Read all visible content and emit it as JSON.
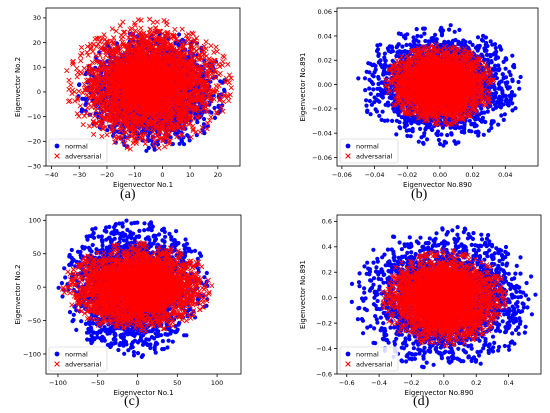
{
  "chart_data": [
    {
      "type": "scatter",
      "panel_label": "(a)",
      "xlabel": "Eigenvector No.1",
      "ylabel": "Eigenvector No.2",
      "xlim": [
        -42,
        28
      ],
      "ylim": [
        -30,
        34
      ],
      "xticks": [
        -40,
        -30,
        -20,
        -10,
        0,
        10,
        20
      ],
      "yticks": [
        -30,
        -20,
        -10,
        0,
        10,
        20,
        30
      ],
      "legend_position": "lower-left",
      "series": [
        {
          "name": "normal",
          "marker": "circle",
          "color": "#0000ff",
          "cloud": {
            "cx": -4,
            "cy": 0.5,
            "rx": 24,
            "ry": 22
          }
        },
        {
          "name": "adversarial",
          "marker": "x",
          "color": "#ff0000",
          "cloud": {
            "cx": -5,
            "cy": 3,
            "rx": 27,
            "ry": 24
          }
        }
      ]
    },
    {
      "type": "scatter",
      "panel_label": "(b)",
      "xlabel": "Eigenvector No.890",
      "ylabel": "Eigenvector No.891",
      "xlim": [
        -0.063,
        0.06
      ],
      "ylim": [
        -0.067,
        0.063
      ],
      "xticks": [
        -0.06,
        -0.04,
        -0.02,
        0.0,
        0.02,
        0.04
      ],
      "yticks": [
        -0.06,
        -0.04,
        -0.02,
        0.0,
        0.02,
        0.04,
        0.06
      ],
      "tick_decimals": 2,
      "legend_position": "lower-left",
      "series": [
        {
          "name": "normal",
          "marker": "circle",
          "color": "#0000ff",
          "cloud": {
            "cx": 0.0,
            "cy": 0.0,
            "rx": 0.045,
            "ry": 0.045
          }
        },
        {
          "name": "adversarial",
          "marker": "x",
          "color": "#ff0000",
          "cloud": {
            "cx": 0.0,
            "cy": 0.0,
            "rx": 0.03,
            "ry": 0.03
          }
        }
      ]
    },
    {
      "type": "scatter",
      "panel_label": "(c)",
      "xlabel": "Eigenvector No.1",
      "ylabel": "Eigenvector No.2",
      "xlim": [
        -115,
        130
      ],
      "ylim": [
        -130,
        108
      ],
      "xticks": [
        -100,
        -50,
        0,
        50,
        100
      ],
      "yticks": [
        -100,
        -50,
        0,
        50,
        100
      ],
      "legend_position": "lower-left",
      "series": [
        {
          "name": "normal",
          "marker": "circle",
          "color": "#0000ff",
          "cloud": {
            "cx": -5,
            "cy": 0,
            "rx": 85,
            "ry": 95
          }
        },
        {
          "name": "adversarial",
          "marker": "x",
          "color": "#ff0000",
          "cloud": {
            "cx": 0,
            "cy": 0,
            "rx": 85,
            "ry": 60
          }
        }
      ]
    },
    {
      "type": "scatter",
      "panel_label": "(d)",
      "xlabel": "Eigenvector No.890",
      "ylabel": "Eigenvector No.891",
      "xlim": [
        -0.66,
        0.6
      ],
      "ylim": [
        -0.6,
        0.65
      ],
      "xticks": [
        -0.6,
        -0.4,
        -0.2,
        0.0,
        0.2,
        0.4
      ],
      "yticks": [
        -0.6,
        -0.4,
        -0.2,
        0.0,
        0.2,
        0.4,
        0.6
      ],
      "tick_decimals": 1,
      "legend_position": "lower-left",
      "series": [
        {
          "name": "normal",
          "marker": "circle",
          "color": "#0000ff",
          "cloud": {
            "cx": 0.0,
            "cy": 0.0,
            "rx": 0.52,
            "ry": 0.52
          }
        },
        {
          "name": "adversarial",
          "marker": "x",
          "color": "#ff0000",
          "cloud": {
            "cx": 0.0,
            "cy": 0.0,
            "rx": 0.35,
            "ry": 0.34
          }
        }
      ]
    }
  ]
}
